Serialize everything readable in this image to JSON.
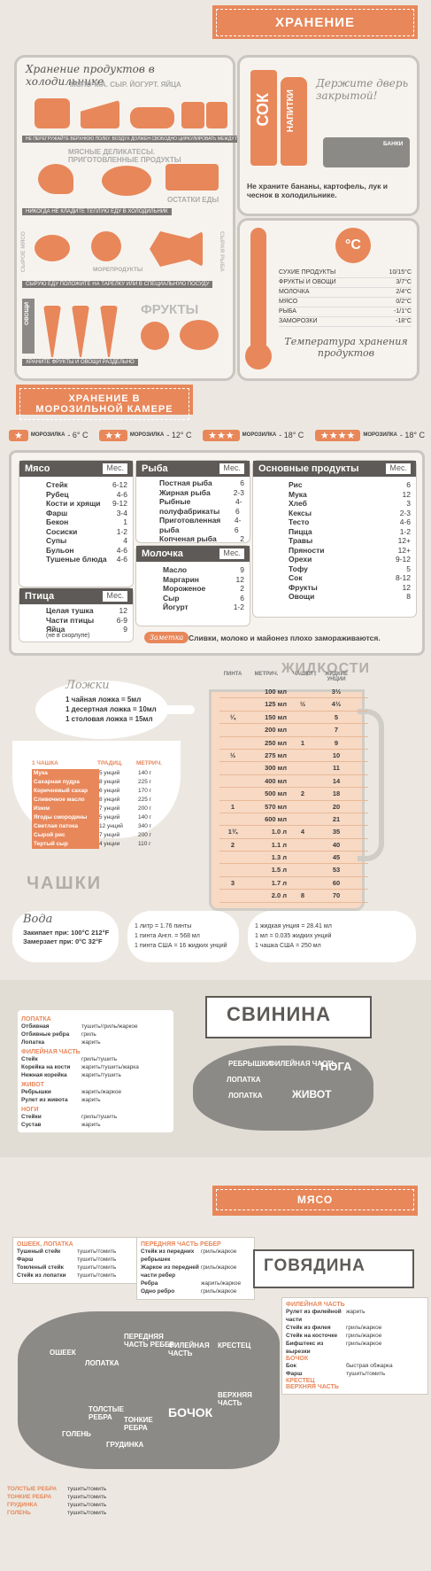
{
  "colors": {
    "accent": "#e8875a",
    "dark": "#5d5a57",
    "bg": "#ece8e1",
    "grey": "#8c8a87"
  },
  "storage": {
    "banner": "ХРАНЕНИЕ",
    "fridge_title": "Хранение продуктов в холодильнике",
    "cat_dairy": "МОЛОЧКА. СЫР. ЙОГУРТ. ЯЙЦА",
    "strip1": "НЕ ПЕРЕГРУЖАЙТЕ ВЕРХНЮЮ ПОЛКУ. ВОЗДУХ ДОЛЖЕН СВОБОДНО ЦИРКУЛИРОВАТЬ МЕЖДУ ПОЛКАМИ",
    "cat_deli": "МЯСНЫЕ ДЕЛИКАТЕСЫ. ПРИГОТОВЛЕННЫЕ ПРОДУКТЫ",
    "cat_leftovers": "ОСТАТКИ ЕДЫ",
    "strip2": "НИКОГДА НЕ КЛАДИТЕ ТЕПЛУЮ ЕДУ В ХОЛОДИЛЬНИК",
    "cat_rawmeat": "СЫРОЕ МЯСО",
    "cat_seafood": "МОРЕПРОДУКТЫ",
    "cat_rawfish": "СЫРАЯ РЫБА",
    "strip3": "СЫРУЮ ЕДУ ПОЛОЖИТЕ НА ТАРЕЛКУ ИЛИ В СПЕЦИАЛЬНУЮ ПОСУДУ",
    "cat_veg": "ОВОЩИ",
    "cat_fruit": "ФРУКТЫ",
    "strip4": "ХРАНИТЕ ФРУКТЫ И ОВОЩИ РАЗДЕЛЬНО",
    "door_juice": "СОК",
    "door_drinks": "НАПИТКИ",
    "door_cans": "БАНКИ",
    "door_note": "Держите дверь закрытой!",
    "bananas_note": "Не храните бананы, картофель, лук и чеснок в холодильнике.",
    "temp_unit": "°C",
    "temps": [
      {
        "name": "СУХИЕ ПРОДУКТЫ",
        "value": "10/15°C"
      },
      {
        "name": "ФРУКТЫ И ОВОЩИ",
        "value": "3/7°C"
      },
      {
        "name": "МОЛОЧКА",
        "value": "2/4°C"
      },
      {
        "name": "МЯСО",
        "value": "0/2°C"
      },
      {
        "name": "РЫБА",
        "value": "-1/1°C"
      },
      {
        "name": "ЗАМОРОЗКИ",
        "value": "-18°C"
      }
    ],
    "temp_caption": "Температура хранения продуктов"
  },
  "freezer": {
    "banner": "ХРАНЕНИЕ В МОРОЗИЛЬНОЙ КАМЕРЕ",
    "ratings": [
      {
        "stars": "★",
        "label": "МОРОЗИЛКА",
        "temp": "- 6° C"
      },
      {
        "stars": "★★",
        "label": "МОРОЗИЛКА",
        "temp": "- 12° C"
      },
      {
        "stars": "★★★",
        "label": "МОРОЗИЛКА",
        "temp": "- 18° C"
      },
      {
        "stars": "★★★★",
        "label": "МОРОЗИЛКА",
        "temp": "- 18° C"
      }
    ],
    "months_label": "Мес.",
    "meat": {
      "title": "Мясо",
      "items": [
        [
          "Стейк",
          "6-12"
        ],
        [
          "Рубец",
          "4-6"
        ],
        [
          "Кости и хрящи",
          "9-12"
        ],
        [
          "Фарш",
          "3-4"
        ],
        [
          "Бекон",
          "1"
        ],
        [
          "Сосиски",
          "1-2"
        ],
        [
          "Супы",
          "4"
        ],
        [
          "Бульон",
          "4-6"
        ],
        [
          "Тушеные блюда",
          "4-6"
        ]
      ]
    },
    "poultry": {
      "title": "Птица",
      "items": [
        [
          "Целая тушка",
          "12"
        ],
        [
          "Части птицы",
          "6-9"
        ],
        [
          "Яйца",
          "9"
        ]
      ],
      "note": "(не в скорлупе)"
    },
    "fish": {
      "title": "Рыба",
      "items": [
        [
          "Постная рыба",
          "6"
        ],
        [
          "Жирная рыба",
          "2-3"
        ],
        [
          "Рыбные полуфабрикаты",
          "4-6"
        ],
        [
          "Приготовленная рыба",
          "4-6"
        ],
        [
          "Копченая рыба",
          "2"
        ],
        [
          "Морепродукты",
          "3"
        ]
      ]
    },
    "dairy": {
      "title": "Молочка",
      "items": [
        [
          "Масло",
          "9"
        ],
        [
          "Маргарин",
          "12"
        ],
        [
          "Мороженое",
          "2"
        ],
        [
          "Сыр",
          "6"
        ],
        [
          "Йогурт",
          "1-2"
        ]
      ]
    },
    "basic": {
      "title": "Основные продукты",
      "items": [
        [
          "Рис",
          "6"
        ],
        [
          "Мука",
          "12"
        ],
        [
          "Хлеб",
          "3"
        ],
        [
          "Кексы",
          "2-3"
        ],
        [
          "Тесто",
          "4-6"
        ],
        [
          "Пицца",
          "1-2"
        ],
        [
          "Травы",
          "12+"
        ],
        [
          "Пряности",
          "12+"
        ],
        [
          "Орехи",
          "9-12"
        ],
        [
          "Тофу",
          "5"
        ],
        [
          "Сок",
          "8-12"
        ],
        [
          "Фрукты",
          "12"
        ],
        [
          "Овощи",
          "8"
        ]
      ]
    },
    "note_tag": "Заметка",
    "note": "Сливки, молоко и майонез плохо замораживаются."
  },
  "measures": {
    "spoons_title": "Ложки",
    "spoons": [
      "1 чайная ложка = 5мл",
      "1 десертная ложка = 10мл",
      "1 столовая ложка = 15мл"
    ],
    "liquids_title": "ЖИДКОСТИ",
    "liq_headers": [
      "ПИНТА",
      "МЕТРИЧ.",
      "ЧАШКИ",
      "ЖИДКИЕ УНЦИИ"
    ],
    "liquids": [
      [
        "",
        "100 мл",
        "",
        "3½"
      ],
      [
        "",
        "125 мл",
        "½",
        "4½"
      ],
      [
        "¼",
        "150 мл",
        "",
        "5"
      ],
      [
        "",
        "200 мл",
        "",
        "7"
      ],
      [
        "",
        "250 мл",
        "1",
        "9"
      ],
      [
        "½",
        "275 мл",
        "",
        "10"
      ],
      [
        "",
        "300 мл",
        "",
        "11"
      ],
      [
        "",
        "400 мл",
        "",
        "14"
      ],
      [
        "",
        "500 мл",
        "2",
        "18"
      ],
      [
        "1",
        "570 мл",
        "",
        "20"
      ],
      [
        "",
        "600 мл",
        "",
        "21"
      ],
      [
        "1¾",
        "1.0 л",
        "4",
        "35"
      ],
      [
        "2",
        "1.1 л",
        "",
        "40"
      ],
      [
        "",
        "1.3 л",
        "",
        "45"
      ],
      [
        "",
        "1.5 л",
        "",
        "53"
      ],
      [
        "3",
        "1.7 л",
        "",
        "60"
      ],
      [
        "",
        "2.0 л",
        "8",
        "70"
      ]
    ],
    "cups_headers": [
      "1 ЧАШКА",
      "ТРАДИЦ.",
      "МЕТРИЧ."
    ],
    "cups": [
      [
        "Мука",
        "5 унций",
        "140 г"
      ],
      [
        "Сахарная пудра",
        "8 унций",
        "225 г"
      ],
      [
        "Коричневый сахар",
        "6 унций",
        "170 г"
      ],
      [
        "Сливочное масло",
        "8 унций",
        "225 г"
      ],
      [
        "Изюм",
        "7 унций",
        "200 г"
      ],
      [
        "Ягоды смородины",
        "5 унций",
        "140 г"
      ],
      [
        "Светлая патока",
        "12 унций",
        "340 г"
      ],
      [
        "Сырой рис",
        "7 унций",
        "200 г"
      ],
      [
        "Тертый сыр",
        "4 унции",
        "110 г"
      ]
    ],
    "cups_title": "ЧАШКИ",
    "water_title": "Вода",
    "water": [
      "Закипает при: 100°C 212°F",
      "Замерзает при: 0°C 32°F"
    ],
    "conv1": [
      "1 литр = 1.76 пинты",
      "1 пинта Англ. = 568 мл",
      "1 пинта США = 16 жидких унций"
    ],
    "conv2": [
      "1 жидкая унция = 28.41 мл",
      "1 мл = 0.035 жидких унций",
      "1 чашка США = 250 мл"
    ]
  },
  "pork": {
    "title": "СВИНИНА",
    "sections": [
      {
        "name": "ЛОПАТКА",
        "items": [
          [
            "Отбивная",
            "тушить/гриль/жаркое"
          ],
          [
            "Отбивные ребра",
            "гриль"
          ],
          [
            "Лопатка",
            "жарить"
          ]
        ]
      },
      {
        "name": "ФИЛЕЙНАЯ ЧАСТЬ",
        "items": [
          [
            "Стейк",
            "гриль/тушить"
          ],
          [
            "Корейка на кости",
            "жарить/тушить/жарка"
          ],
          [
            "Нежная корейка",
            "жарить/тушить"
          ]
        ]
      },
      {
        "name": "ЖИВОТ",
        "items": [
          [
            "Ребрышки",
            "жарить/жаркое"
          ],
          [
            "Рулет из живота",
            "жарить"
          ]
        ]
      },
      {
        "name": "НОГИ",
        "items": [
          [
            "Стейки",
            "гриль/тушить"
          ],
          [
            "Сустав",
            "жарить"
          ]
        ]
      }
    ],
    "cuts": [
      "ЛОПАТКА",
      "ФИЛЕЙНАЯ ЧАСТЬ",
      "НОГА",
      "ЖИВОТ",
      "РЕБРЫШКИ",
      "ЛОПАТКА"
    ]
  },
  "beef": {
    "banner": "МЯСО",
    "title": "ГОВЯДИНА",
    "left_section": {
      "name": "ОШЕЕК, ЛОПАТКА",
      "items": [
        [
          "Тушеный стейк",
          "тушить/томить"
        ],
        [
          "Фарш",
          "тушить/томить"
        ],
        [
          "Томленый стейк",
          "тушить/томить"
        ],
        [
          "Стейк из лопатки",
          "тушить/томить"
        ]
      ]
    },
    "mid_section": {
      "name": "ПЕРЕДНЯЯ ЧАСТЬ РЕБЕР",
      "items": [
        [
          "Стейк из передних ребрышек",
          "гриль/жаркое"
        ],
        [
          "Жаркое из передней части ребер",
          "гриль/жаркое"
        ],
        [
          "Ребра",
          "жарить/жаркое"
        ],
        [
          "Одно ребро",
          "гриль/жаркое"
        ]
      ]
    },
    "right_sections": [
      {
        "name": "ФИЛЕЙНАЯ ЧАСТЬ",
        "items": [
          [
            "Рулет из филейной части",
            "жарить"
          ],
          [
            "Стейк из филея",
            "гриль/жаркое"
          ],
          [
            "Стейк на косточке",
            "гриль/жаркое"
          ],
          [
            "Бифштекс из вырезки",
            "гриль/жаркое"
          ]
        ]
      },
      {
        "name": "БОЧОК",
        "items": [
          [
            "Бок",
            "быстрая обжарка"
          ],
          [
            "Фарш",
            "тушить/томить"
          ]
        ]
      },
      {
        "name": "КРЕСТЕЦ",
        "items": []
      },
      {
        "name": "ВЕРХНЯЯ ЧАСТЬ",
        "items": []
      }
    ],
    "bottom": [
      [
        "ТОЛСТЫЕ РЕБРА",
        "тушить/томить"
      ],
      [
        "ТОНКИЕ РЕБРА",
        "тушить/томить"
      ],
      [
        "ГРУДИНКА",
        "тушить/томить"
      ],
      [
        "ГОЛЕНЬ",
        "тушить/томить"
      ]
    ],
    "cuts": [
      "ОШЕЕК",
      "ЛОПАТКА",
      "ПЕРЕДНЯЯ ЧАСТЬ РЕБЕР",
      "ФИЛЕЙНАЯ ЧАСТЬ",
      "КРЕСТЕЦ",
      "ТОЛСТЫЕ РЕБРА",
      "ТОНКИЕ РЕБРА",
      "БОЧОК",
      "ВЕРХНЯЯ ЧАСТЬ",
      "ГРУДИНКА",
      "ГОЛЕНЬ"
    ]
  }
}
